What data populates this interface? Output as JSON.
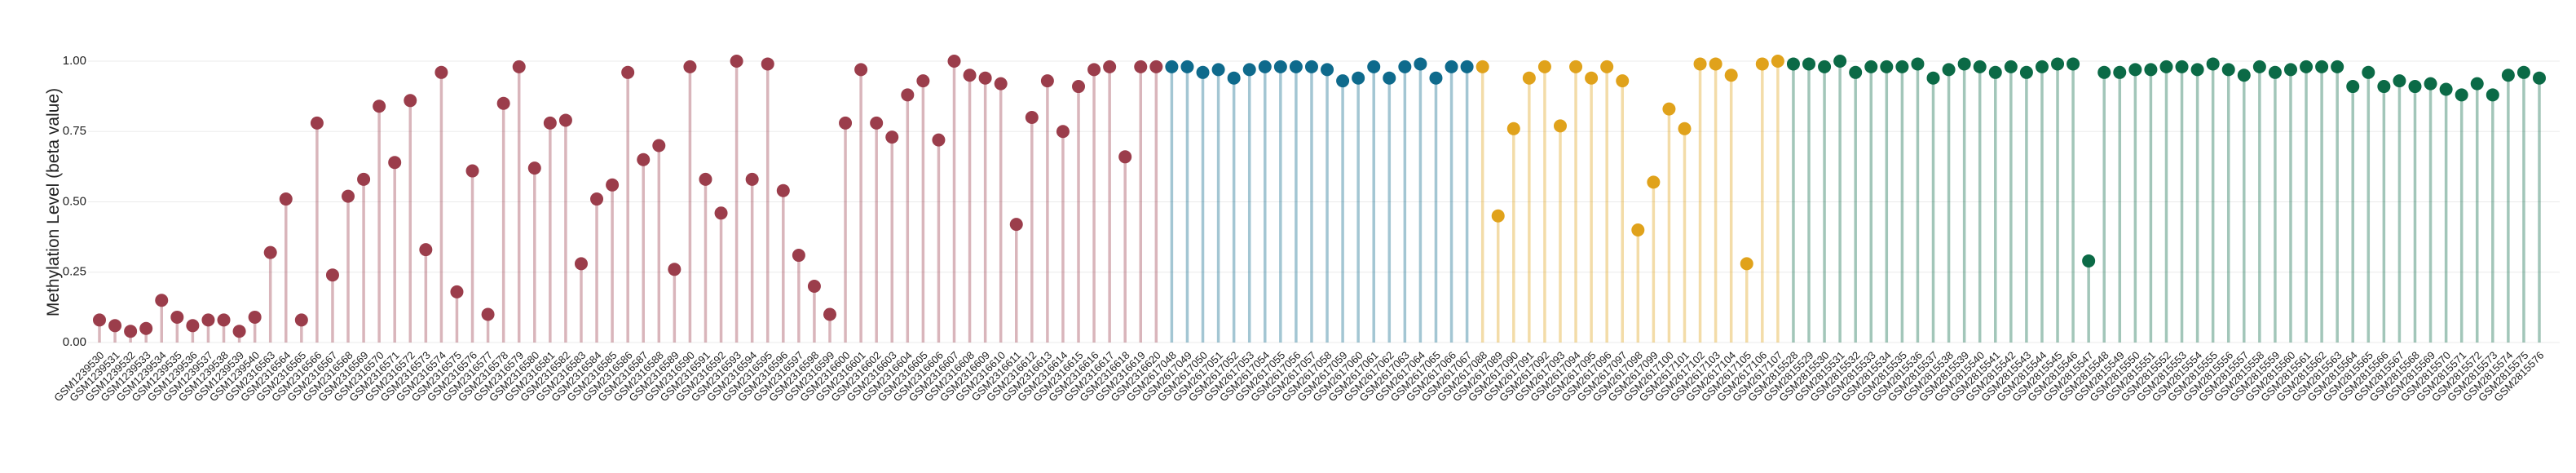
{
  "chart_data": {
    "type": "lollipop",
    "y_label": "Methylation Level (beta value)",
    "ylim": [
      0,
      1
    ],
    "yticks": [
      {
        "value": 0,
        "label": "0.00"
      },
      {
        "value": 0.25,
        "label": "0.25"
      },
      {
        "value": 0.5,
        "label": "0.50"
      },
      {
        "value": 0.75,
        "label": "0.75"
      },
      {
        "value": 1,
        "label": "1.00"
      }
    ],
    "grid": true,
    "categories": [
      "GSM1239530",
      "GSM1239531",
      "GSM1239532",
      "GSM1239533",
      "GSM1239534",
      "GSM1239535",
      "GSM1239536",
      "GSM1239537",
      "GSM1239538",
      "GSM1239539",
      "GSM1239540",
      "GSM2316563",
      "GSM2316564",
      "GSM2316565",
      "GSM2316566",
      "GSM2316567",
      "GSM2316568",
      "GSM2316569",
      "GSM2316570",
      "GSM2316571",
      "GSM2316572",
      "GSM2316573",
      "GSM2316574",
      "GSM2316575",
      "GSM2316576",
      "GSM2316577",
      "GSM2316578",
      "GSM2316579",
      "GSM2316580",
      "GSM2316581",
      "GSM2316582",
      "GSM2316583",
      "GSM2316584",
      "GSM2316585",
      "GSM2316586",
      "GSM2316587",
      "GSM2316588",
      "GSM2316589",
      "GSM2316590",
      "GSM2316591",
      "GSM2316592",
      "GSM2316593",
      "GSM2316594",
      "GSM2316595",
      "GSM2316596",
      "GSM2316597",
      "GSM2316598",
      "GSM2316599",
      "GSM2316600",
      "GSM2316601",
      "GSM2316602",
      "GSM2316603",
      "GSM2316604",
      "GSM2316605",
      "GSM2316606",
      "GSM2316607",
      "GSM2316608",
      "GSM2316609",
      "GSM2316610",
      "GSM2316611",
      "GSM2316612",
      "GSM2316613",
      "GSM2316614",
      "GSM2316615",
      "GSM2316616",
      "GSM2316617",
      "GSM2316618",
      "GSM2316619",
      "GSM2316620",
      "GSM2617048",
      "GSM2617049",
      "GSM2617050",
      "GSM2617051",
      "GSM2617052",
      "GSM2617053",
      "GSM2617054",
      "GSM2617055",
      "GSM2617056",
      "GSM2617057",
      "GSM2617058",
      "GSM2617059",
      "GSM2617060",
      "GSM2617061",
      "GSM2617062",
      "GSM2617063",
      "GSM2617064",
      "GSM2617065",
      "GSM2617066",
      "GSM2617067",
      "GSM2617088",
      "GSM2617089",
      "GSM2617090",
      "GSM2617091",
      "GSM2617092",
      "GSM2617093",
      "GSM2617094",
      "GSM2617095",
      "GSM2617096",
      "GSM2617097",
      "GSM2617098",
      "GSM2617099",
      "GSM2617100",
      "GSM2617101",
      "GSM2617102",
      "GSM2617103",
      "GSM2617104",
      "GSM2617105",
      "GSM2617106",
      "GSM2617107",
      "GSM2815528",
      "GSM2815529",
      "GSM2815530",
      "GSM2815531",
      "GSM2815532",
      "GSM2815533",
      "GSM2815534",
      "GSM2815535",
      "GSM2815536",
      "GSM2815537",
      "GSM2815538",
      "GSM2815539",
      "GSM2815540",
      "GSM2815541",
      "GSM2815542",
      "GSM2815543",
      "GSM2815544",
      "GSM2815545",
      "GSM2815546",
      "GSM2815547",
      "GSM2815548",
      "GSM2815549",
      "GSM2815550",
      "GSM2815551",
      "GSM2815552",
      "GSM2815553",
      "GSM2815554",
      "GSM2815555",
      "GSM2815556",
      "GSM2815557",
      "GSM2815558",
      "GSM2815559",
      "GSM2815560",
      "GSM2815561",
      "GSM2815562",
      "GSM2815563",
      "GSM2815564",
      "GSM2815565",
      "GSM2815566",
      "GSM2815567",
      "GSM2815568",
      "GSM2815569",
      "GSM2815570",
      "GSM2815571",
      "GSM2815572",
      "GSM2815573",
      "GSM2815574",
      "GSM2815575",
      "GSM2815576"
    ],
    "values": [
      0.08,
      0.06,
      0.04,
      0.05,
      0.15,
      0.09,
      0.06,
      0.08,
      0.08,
      0.04,
      0.09,
      0.32,
      0.51,
      0.08,
      0.78,
      0.24,
      0.52,
      0.58,
      0.84,
      0.64,
      0.86,
      0.33,
      0.96,
      0.18,
      0.61,
      0.1,
      0.85,
      0.98,
      0.62,
      0.78,
      0.79,
      0.28,
      0.51,
      0.56,
      0.96,
      0.65,
      0.7,
      0.26,
      0.98,
      0.58,
      0.46,
      1.0,
      0.58,
      0.99,
      0.54,
      0.31,
      0.2,
      0.1,
      0.78,
      0.97,
      0.78,
      0.73,
      0.88,
      0.93,
      0.72,
      1.0,
      0.95,
      0.94,
      0.92,
      0.42,
      0.8,
      0.93,
      0.75,
      0.91,
      0.97,
      0.98,
      0.66,
      0.98,
      0.98,
      0.98,
      0.98,
      0.96,
      0.97,
      0.94,
      0.97,
      0.98,
      0.98,
      0.98,
      0.98,
      0.97,
      0.93,
      0.94,
      0.98,
      0.94,
      0.98,
      0.99,
      0.94,
      0.98,
      0.98,
      0.98,
      0.45,
      0.76,
      0.94,
      0.98,
      0.77,
      0.98,
      0.94,
      0.98,
      0.93,
      0.4,
      0.57,
      0.83,
      0.76,
      0.99,
      0.99,
      0.95,
      0.28,
      0.99,
      1.0,
      0.99,
      0.99,
      0.98,
      1.0,
      0.96,
      0.98,
      0.98,
      0.98,
      0.99,
      0.94,
      0.97,
      0.99,
      0.98,
      0.96,
      0.98,
      0.96,
      0.98,
      0.99,
      0.99,
      0.29,
      0.96,
      0.96,
      0.97,
      0.97,
      0.98,
      0.98,
      0.97,
      0.99,
      0.97,
      0.95,
      0.98,
      0.96,
      0.97,
      0.98,
      0.98,
      0.98,
      0.91,
      0.96,
      0.91,
      0.93,
      0.91,
      0.92,
      0.9,
      0.88,
      0.92,
      0.88,
      0.95,
      0.96,
      0.94
    ],
    "colors": [
      "#9b3d4b",
      "#9b3d4b",
      "#9b3d4b",
      "#9b3d4b",
      "#9b3d4b",
      "#9b3d4b",
      "#9b3d4b",
      "#9b3d4b",
      "#9b3d4b",
      "#9b3d4b",
      "#9b3d4b",
      "#9b3d4b",
      "#9b3d4b",
      "#9b3d4b",
      "#9b3d4b",
      "#9b3d4b",
      "#9b3d4b",
      "#9b3d4b",
      "#9b3d4b",
      "#9b3d4b",
      "#9b3d4b",
      "#9b3d4b",
      "#9b3d4b",
      "#9b3d4b",
      "#9b3d4b",
      "#9b3d4b",
      "#9b3d4b",
      "#9b3d4b",
      "#9b3d4b",
      "#9b3d4b",
      "#9b3d4b",
      "#9b3d4b",
      "#9b3d4b",
      "#9b3d4b",
      "#9b3d4b",
      "#9b3d4b",
      "#9b3d4b",
      "#9b3d4b",
      "#9b3d4b",
      "#9b3d4b",
      "#9b3d4b",
      "#9b3d4b",
      "#9b3d4b",
      "#9b3d4b",
      "#9b3d4b",
      "#9b3d4b",
      "#9b3d4b",
      "#9b3d4b",
      "#9b3d4b",
      "#9b3d4b",
      "#9b3d4b",
      "#9b3d4b",
      "#9b3d4b",
      "#9b3d4b",
      "#9b3d4b",
      "#9b3d4b",
      "#9b3d4b",
      "#9b3d4b",
      "#9b3d4b",
      "#9b3d4b",
      "#9b3d4b",
      "#9b3d4b",
      "#9b3d4b",
      "#9b3d4b",
      "#9b3d4b",
      "#9b3d4b",
      "#9b3d4b",
      "#9b3d4b",
      "#9b3d4b",
      "#0e6a8c",
      "#0e6a8c",
      "#0e6a8c",
      "#0e6a8c",
      "#0e6a8c",
      "#0e6a8c",
      "#0e6a8c",
      "#0e6a8c",
      "#0e6a8c",
      "#0e6a8c",
      "#0e6a8c",
      "#0e6a8c",
      "#0e6a8c",
      "#0e6a8c",
      "#0e6a8c",
      "#0e6a8c",
      "#0e6a8c",
      "#0e6a8c",
      "#0e6a8c",
      "#0e6a8c",
      "#e0a21b",
      "#e0a21b",
      "#e0a21b",
      "#e0a21b",
      "#e0a21b",
      "#e0a21b",
      "#e0a21b",
      "#e0a21b",
      "#e0a21b",
      "#e0a21b",
      "#e0a21b",
      "#e0a21b",
      "#e0a21b",
      "#e0a21b",
      "#e0a21b",
      "#e0a21b",
      "#e0a21b",
      "#e0a21b",
      "#e0a21b",
      "#e0a21b",
      "#0b6a46",
      "#0b6a46",
      "#0b6a46",
      "#0b6a46",
      "#0b6a46",
      "#0b6a46",
      "#0b6a46",
      "#0b6a46",
      "#0b6a46",
      "#0b6a46",
      "#0b6a46",
      "#0b6a46",
      "#0b6a46",
      "#0b6a46",
      "#0b6a46",
      "#0b6a46",
      "#0b6a46",
      "#0b6a46",
      "#0b6a46",
      "#0b6a46",
      "#0b6a46",
      "#0b6a46",
      "#0b6a46",
      "#0b6a46",
      "#0b6a46",
      "#0b6a46",
      "#0b6a46",
      "#0b6a46",
      "#0b6a46",
      "#0b6a46",
      "#0b6a46",
      "#0b6a46",
      "#0b6a46",
      "#0b6a46",
      "#0b6a46",
      "#0b6a46",
      "#0b6a46",
      "#0b6a46",
      "#0b6a46",
      "#0b6a46",
      "#0b6a46",
      "#0b6a46",
      "#0b6a46",
      "#0b6a46",
      "#0b6a46",
      "#0b6a46",
      "#0b6a46",
      "#0b6a46",
      "#0b6a46"
    ]
  }
}
